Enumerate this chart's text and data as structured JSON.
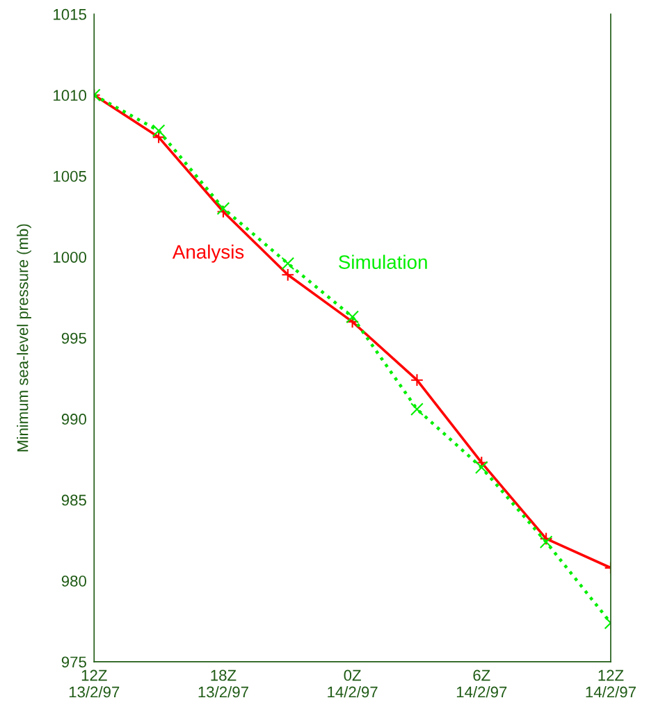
{
  "chart_data": {
    "type": "line",
    "ylabel": "Minimum sea-level pressure (mb)",
    "x": [
      "1997-02-13T12:00",
      "1997-02-13T15:00",
      "1997-02-13T18:00",
      "1997-02-13T21:00",
      "1997-02-14T00:00",
      "1997-02-14T03:00",
      "1997-02-14T06:00",
      "1997-02-14T09:00",
      "1997-02-14T12:00"
    ],
    "xlim": [
      "1997-02-13T12:00",
      "1997-02-14T12:00"
    ],
    "xticks": [
      {
        "value": "1997-02-13T12:00",
        "label": "12Z\n13/2/97"
      },
      {
        "value": "1997-02-13T18:00",
        "label": "18Z\n13/2/97"
      },
      {
        "value": "1997-02-14T00:00",
        "label": "0Z\n14/2/97"
      },
      {
        "value": "1997-02-14T06:00",
        "label": "6Z\n14/2/97"
      },
      {
        "value": "1997-02-14T12:00",
        "label": "12Z\n14/2/97"
      }
    ],
    "ylim": [
      975,
      1015
    ],
    "yticks": [
      975,
      980,
      985,
      990,
      995,
      1000,
      1005,
      1010,
      1015
    ],
    "grid": false,
    "legend": false,
    "series": [
      {
        "name": "Analysis",
        "color": "#ff0000",
        "line_style": "solid",
        "marker": "cross",
        "values": [
          1010.0,
          1007.4,
          1002.8,
          998.9,
          996.0,
          992.4,
          987.3,
          982.6,
          980.8
        ]
      },
      {
        "name": "Simulation",
        "color": "#00ee00",
        "line_style": "dotted",
        "marker": "cross",
        "values": [
          1010.0,
          1007.8,
          1003.0,
          999.6,
          996.3,
          990.6,
          987.0,
          982.4,
          977.4
        ]
      }
    ]
  }
}
